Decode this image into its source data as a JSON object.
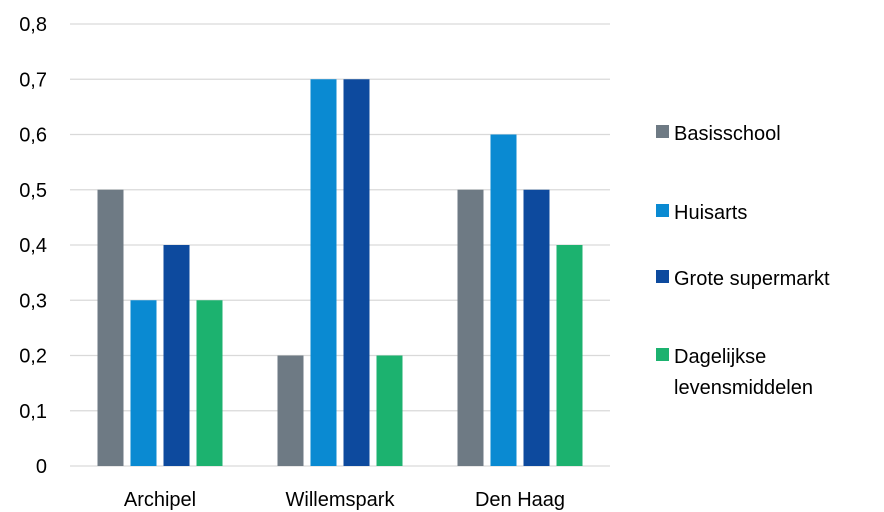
{
  "chart_data": {
    "type": "bar",
    "categories": [
      "Archipel",
      "Willemspark",
      "Den Haag"
    ],
    "series": [
      {
        "name": "Basisschool",
        "values": [
          0.5,
          0.2,
          0.5
        ],
        "color": "#6e7a84"
      },
      {
        "name": "Huisarts",
        "values": [
          0.3,
          0.7,
          0.6
        ],
        "color": "#0a8ad2"
      },
      {
        "name": "Grote supermarkt",
        "values": [
          0.4,
          0.7,
          0.5
        ],
        "color": "#0d4a9e"
      },
      {
        "name": "Dagelijkse levensmiddelen",
        "values": [
          0.3,
          0.2,
          0.4
        ],
        "color": "#1cb26f"
      }
    ],
    "legend_labels": [
      [
        "Basisschool"
      ],
      [
        "Huisarts"
      ],
      [
        "Grote supermarkt"
      ],
      [
        "Dagelijkse",
        "levensmiddelen"
      ]
    ],
    "yticks": [
      "0",
      "0,1",
      "0,2",
      "0,3",
      "0,4",
      "0,5",
      "0,6",
      "0,7",
      "0,8"
    ],
    "ylim": [
      0,
      0.8
    ],
    "grid": true,
    "legend_position": "right",
    "gridline_color": "#d9d9d9"
  }
}
